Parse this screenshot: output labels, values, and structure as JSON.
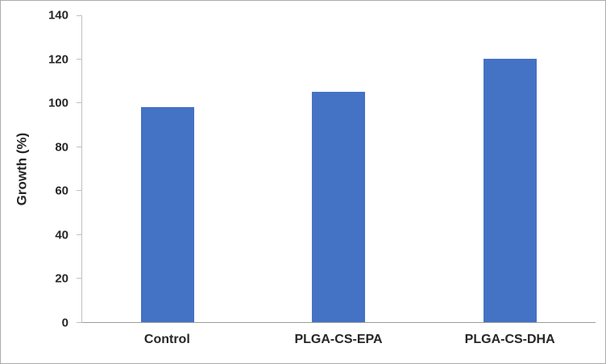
{
  "chart_data": {
    "type": "bar",
    "categories": [
      "Control",
      "PLGA-CS-EPA",
      "PLGA-CS-DHA"
    ],
    "values": [
      98,
      105,
      120
    ],
    "title": "",
    "xlabel": "",
    "ylabel": "Growth (%)",
    "ylim": [
      0,
      140
    ],
    "yticks": [
      0,
      20,
      40,
      60,
      80,
      100,
      120,
      140
    ],
    "bar_color": "#4472C4",
    "grid": false,
    "legend": false
  }
}
